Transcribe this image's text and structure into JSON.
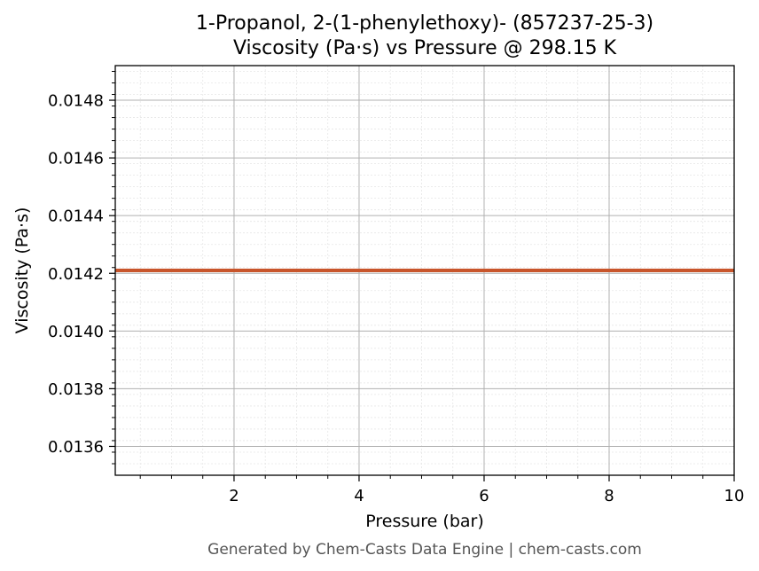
{
  "chart_data": {
    "type": "line",
    "title_line1": "1-Propanol, 2-(1-phenylethoxy)- (857237-25-3)",
    "title_line2": "Viscosity (Pa·s) vs Pressure @ 298.15 K",
    "xlabel": "Pressure (bar)",
    "ylabel": "Viscosity (Pa·s)",
    "xlim": [
      0.1,
      10
    ],
    "ylim": [
      0.0135,
      0.01492
    ],
    "xticks": [
      2,
      4,
      6,
      8,
      10
    ],
    "xtick_labels": [
      "2",
      "4",
      "6",
      "8",
      "10"
    ],
    "yticks": [
      0.0136,
      0.0138,
      0.014,
      0.0142,
      0.0144,
      0.0146,
      0.0148
    ],
    "ytick_labels": [
      "0.0136",
      "0.0138",
      "0.0140",
      "0.0142",
      "0.0144",
      "0.0146",
      "0.0148"
    ],
    "grid": true,
    "series": [
      {
        "color": "#c8552b",
        "x": [
          0.1,
          10
        ],
        "y": [
          0.01421,
          0.01421
        ]
      }
    ]
  },
  "footer": "Generated by Chem-Casts Data Engine | chem-casts.com"
}
